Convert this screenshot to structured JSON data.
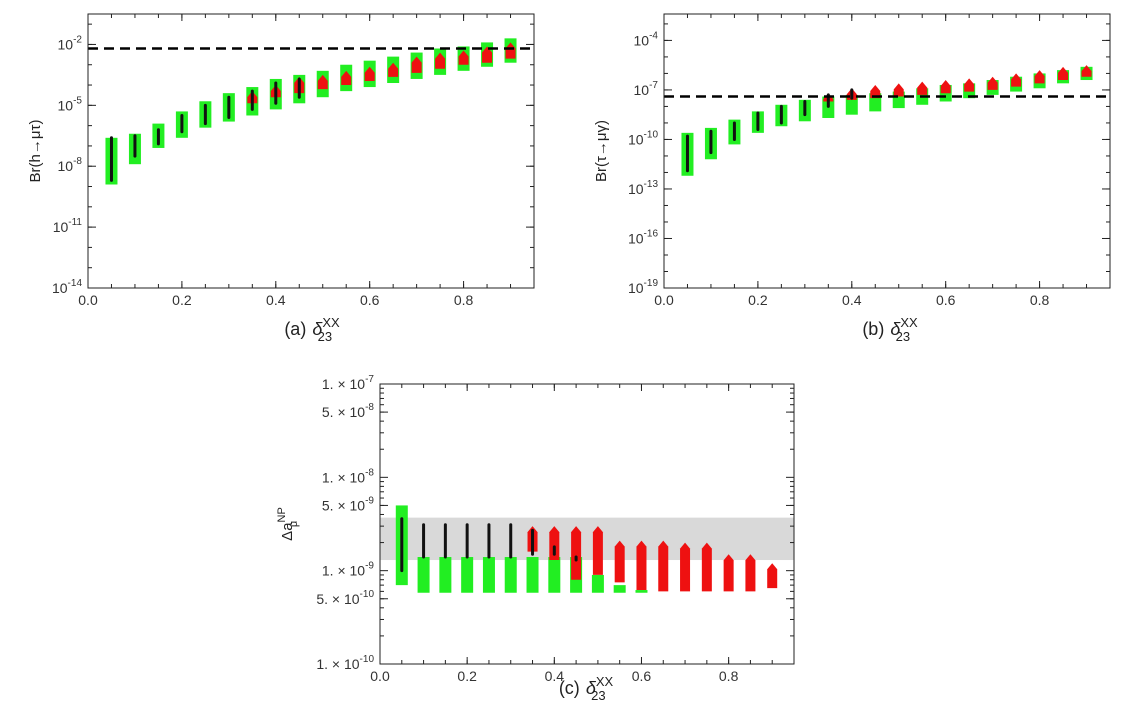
{
  "colors": {
    "green": "#22ee22",
    "red": "#ee1111",
    "black": "#111111",
    "band": "#d9d9d9"
  },
  "chart_data": [
    {
      "id": "a",
      "type": "scatter",
      "scale": "log",
      "caption": "(a)",
      "xlabel_base": "δ",
      "xlabel_sub": "23",
      "xlabel_sup": "XX",
      "ylabel": "Br(h→μτ)",
      "xlim": [
        0,
        0.95
      ],
      "ylim_exp": [
        -14,
        -0.5
      ],
      "xticks": [
        "0.0",
        "0.2",
        "0.4",
        "0.6",
        "0.8"
      ],
      "yticks": [
        {
          "exp": -2,
          "label": "-2"
        },
        {
          "exp": -5,
          "label": "-5"
        },
        {
          "exp": -8,
          "label": "-8"
        },
        {
          "exp": -11,
          "label": "-11"
        },
        {
          "exp": -14,
          "label": "-14"
        }
      ],
      "hline_exp": -2.2,
      "x": [
        0.05,
        0.1,
        0.15,
        0.2,
        0.25,
        0.3,
        0.35,
        0.4,
        0.45,
        0.5,
        0.55,
        0.6,
        0.65,
        0.7,
        0.75,
        0.8,
        0.85,
        0.9
      ],
      "green_exp": [
        [
          -8.9,
          -6.6
        ],
        [
          -7.9,
          -6.4
        ],
        [
          -7.1,
          -5.9
        ],
        [
          -6.6,
          -5.3
        ],
        [
          -6.1,
          -4.8
        ],
        [
          -5.8,
          -4.4
        ],
        [
          -5.5,
          -4.1
        ],
        [
          -5.2,
          -3.7
        ],
        [
          -4.9,
          -3.5
        ],
        [
          -4.6,
          -3.3
        ],
        [
          -4.3,
          -3.0
        ],
        [
          -4.1,
          -2.8
        ],
        [
          -3.9,
          -2.6
        ],
        [
          -3.7,
          -2.4
        ],
        [
          -3.5,
          -2.2
        ],
        [
          -3.3,
          -2.1
        ],
        [
          -3.1,
          -1.9
        ],
        [
          -2.9,
          -1.7
        ]
      ],
      "red_exp": [
        null,
        null,
        null,
        null,
        null,
        null,
        [
          -4.9,
          -4.3
        ],
        [
          -4.6,
          -4.0
        ],
        [
          -4.4,
          -3.6
        ],
        [
          -4.2,
          -3.5
        ],
        [
          -4.0,
          -3.3
        ],
        [
          -3.8,
          -3.1
        ],
        [
          -3.6,
          -2.9
        ],
        [
          -3.4,
          -2.6
        ],
        [
          -3.2,
          -2.4
        ],
        [
          -3.0,
          -2.3
        ],
        [
          -2.9,
          -2.1
        ],
        [
          -2.7,
          -1.9
        ]
      ],
      "black_exp": [
        [
          -8.7,
          -6.6
        ],
        [
          -7.5,
          -6.5
        ],
        [
          -6.9,
          -6.2
        ],
        [
          -6.3,
          -5.5
        ],
        [
          -5.9,
          -5.0
        ],
        [
          -5.6,
          -4.6
        ],
        [
          -5.2,
          -4.3
        ],
        [
          -4.9,
          -3.9
        ],
        [
          -4.6,
          -3.7
        ],
        null,
        null,
        null,
        null,
        null,
        null,
        null,
        null,
        null
      ]
    },
    {
      "id": "b",
      "type": "scatter",
      "scale": "log",
      "caption": "(b)",
      "xlabel_base": "δ",
      "xlabel_sub": "23",
      "xlabel_sup": "XX",
      "ylabel": "Br(τ→μγ)",
      "xlim": [
        0,
        0.95
      ],
      "ylim_exp": [
        -19,
        -2.4
      ],
      "xticks": [
        "0.0",
        "0.2",
        "0.4",
        "0.6",
        "0.8"
      ],
      "yticks": [
        {
          "exp": -4,
          "label": "-4"
        },
        {
          "exp": -7,
          "label": "-7"
        },
        {
          "exp": -10,
          "label": "-10"
        },
        {
          "exp": -13,
          "label": "-13"
        },
        {
          "exp": -16,
          "label": "-16"
        },
        {
          "exp": -19,
          "label": "-19"
        }
      ],
      "hline_exp": -7.4,
      "x": [
        0.05,
        0.1,
        0.15,
        0.2,
        0.25,
        0.3,
        0.35,
        0.4,
        0.45,
        0.5,
        0.55,
        0.6,
        0.65,
        0.7,
        0.75,
        0.8,
        0.85,
        0.9
      ],
      "green_exp": [
        [
          -12.2,
          -9.6
        ],
        [
          -11.2,
          -9.3
        ],
        [
          -10.3,
          -8.8
        ],
        [
          -9.6,
          -8.3
        ],
        [
          -9.2,
          -7.9
        ],
        [
          -8.9,
          -7.6
        ],
        [
          -8.7,
          -7.4
        ],
        [
          -8.5,
          -7.3
        ],
        [
          -8.3,
          -7.2
        ],
        [
          -8.1,
          -7.1
        ],
        [
          -7.9,
          -6.9
        ],
        [
          -7.7,
          -6.7
        ],
        [
          -7.5,
          -6.6
        ],
        [
          -7.3,
          -6.4
        ],
        [
          -7.1,
          -6.2
        ],
        [
          -6.9,
          -6.0
        ],
        [
          -6.6,
          -5.8
        ],
        [
          -6.4,
          -5.6
        ]
      ],
      "red_exp": [
        null,
        null,
        null,
        null,
        null,
        null,
        [
          -7.7,
          -7.2
        ],
        [
          -7.6,
          -6.9
        ],
        [
          -7.5,
          -6.7
        ],
        [
          -7.4,
          -6.6
        ],
        [
          -7.3,
          -6.5
        ],
        [
          -7.2,
          -6.4
        ],
        [
          -7.1,
          -6.3
        ],
        [
          -7.0,
          -6.2
        ],
        [
          -6.8,
          -6.0
        ],
        [
          -6.6,
          -5.8
        ],
        [
          -6.4,
          -5.6
        ],
        [
          -6.2,
          -5.5
        ]
      ],
      "black_exp": [
        [
          -11.9,
          -9.8
        ],
        [
          -10.8,
          -9.5
        ],
        [
          -10.0,
          -9.0
        ],
        [
          -9.4,
          -8.4
        ],
        [
          -9.0,
          -8.0
        ],
        [
          -8.5,
          -7.7
        ],
        [
          -8.0,
          -7.3
        ],
        [
          -7.5,
          -7.0
        ],
        null,
        null,
        null,
        null,
        null,
        null,
        null,
        null,
        null,
        null
      ]
    },
    {
      "id": "c",
      "type": "scatter",
      "scale": "log",
      "caption": "(c)",
      "xlabel_base": "δ",
      "xlabel_sub": "23",
      "xlabel_sup": "XX",
      "ylabel_base": "Δa",
      "ylabel_sub": "μ",
      "ylabel_sup": "NP",
      "xlim": [
        0,
        0.95
      ],
      "ylim": [
        1e-10,
        1e-07
      ],
      "xticks": [
        "0.0",
        "0.2",
        "0.4",
        "0.6",
        "0.8"
      ],
      "yticks": [
        {
          "value": 1e-07,
          "mant": "1.",
          "exp": "-7"
        },
        {
          "value": 5e-08,
          "mant": "5.",
          "exp": "-8"
        },
        {
          "value": 1e-08,
          "mant": "1.",
          "exp": "-8"
        },
        {
          "value": 5e-09,
          "mant": "5.",
          "exp": "-9"
        },
        {
          "value": 1e-09,
          "mant": "1.",
          "exp": "-9"
        },
        {
          "value": 5e-10,
          "mant": "5.",
          "exp": "-10"
        },
        {
          "value": 1e-10,
          "mant": "1.",
          "exp": "-10"
        }
      ],
      "band": [
        1.3e-09,
        3.7e-09
      ],
      "x": [
        0.05,
        0.1,
        0.15,
        0.2,
        0.25,
        0.3,
        0.35,
        0.4,
        0.45,
        0.5,
        0.55,
        0.6,
        0.65,
        0.7,
        0.75,
        0.8,
        0.85,
        0.9
      ],
      "green": [
        [
          7e-10,
          5e-09
        ],
        [
          5.8e-10,
          1.4e-09
        ],
        [
          5.8e-10,
          1.4e-09
        ],
        [
          5.8e-10,
          1.4e-09
        ],
        [
          5.8e-10,
          1.4e-09
        ],
        [
          5.8e-10,
          1.4e-09
        ],
        [
          5.8e-10,
          1.4e-09
        ],
        [
          5.8e-10,
          1.4e-09
        ],
        [
          5.8e-10,
          1.4e-09
        ],
        [
          5.8e-10,
          9e-10
        ],
        [
          5.8e-10,
          7e-10
        ],
        [
          5.8e-10,
          6.2e-10
        ],
        null,
        null,
        null,
        null,
        null,
        null
      ],
      "red": [
        null,
        null,
        null,
        null,
        null,
        null,
        [
          1.6e-09,
          3e-09
        ],
        [
          1.3e-09,
          3e-09
        ],
        [
          8e-10,
          3e-09
        ],
        [
          9e-10,
          3e-09
        ],
        [
          7.5e-10,
          2.1e-09
        ],
        [
          6.2e-10,
          2.1e-09
        ],
        [
          6e-10,
          2.1e-09
        ],
        [
          6e-10,
          2e-09
        ],
        [
          6e-10,
          2e-09
        ],
        [
          6e-10,
          1.5e-09
        ],
        [
          6e-10,
          1.5e-09
        ],
        [
          6.5e-10,
          1.2e-09
        ]
      ],
      "black": [
        [
          1e-09,
          3.6e-09
        ],
        [
          1.4e-09,
          3.1e-09
        ],
        [
          1.4e-09,
          3.1e-09
        ],
        [
          1.4e-09,
          3.1e-09
        ],
        [
          1.4e-09,
          3.1e-09
        ],
        [
          1.4e-09,
          3.1e-09
        ],
        [
          1.5e-09,
          2.7e-09
        ],
        [
          1.5e-09,
          1.8e-09
        ],
        [
          1.3e-09,
          1.4e-09
        ],
        null,
        null,
        null,
        null,
        null,
        null,
        null,
        null,
        null
      ]
    }
  ]
}
